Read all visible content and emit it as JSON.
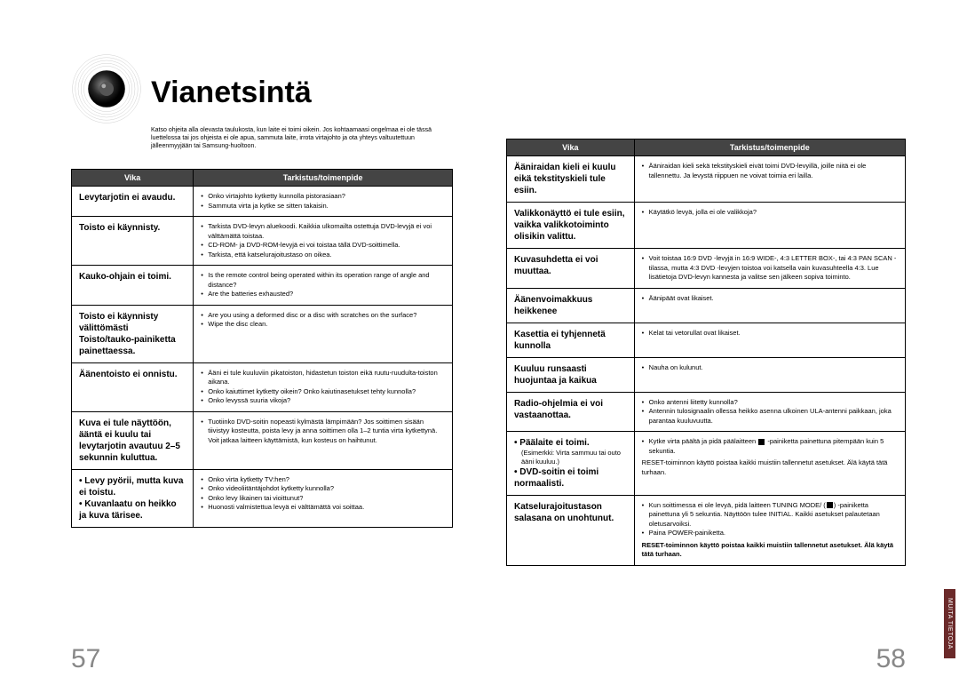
{
  "title": "Vianetsintä",
  "intro": "Katso ohjeita alla olevasta taulukosta, kun laite ei toimi oikein. Jos kohtaamaasi ongelmaa ei ole tässä luettelossa tai jos ohjeista ei ole apua, sammuta laite, irrota virtajohto ja ota yhteys valtuutettuun jälleenmyyjään tai Samsung-huoltoon.",
  "header_vika": "Vika",
  "header_action": "Tarkistus/toimenpide",
  "page_left_num": "57",
  "page_right_num": "58",
  "side_tab": "MUITA TIETOJA",
  "left_rows": [
    {
      "symptom": "Levytarjotin ei avaudu.",
      "actions": [
        "Onko virtajohto kytketty kunnolla pistorasiaan?",
        "Sammuta virta ja kytke se sitten takaisin."
      ]
    },
    {
      "symptom": "Toisto ei käynnisty.",
      "actions": [
        "Tarkista DVD-levyn aluekoodi. Kaikkia ulkomailta ostettuja DVD-levyjä ei voi välttämättä toistaa.",
        "CD-ROM- ja DVD-ROM-levyjä ei voi toistaa tällä DVD-soittimella.",
        "Tarkista, että katselurajoitustaso on oikea."
      ]
    },
    {
      "symptom": "Kauko-ohjain ei toimi.",
      "actions": [
        "Is the remote control being operated within its operation range of angle and distance?",
        "Are the batteries exhausted?"
      ]
    },
    {
      "symptom": "Toisto ei käynnisty välittömästi Toisto/tauko-painiketta painettaessa.",
      "actions": [
        "Are you using a deformed disc or a disc with scratches on the surface?",
        "Wipe the disc clean."
      ]
    },
    {
      "symptom": "Äänentoisto ei onnistu.",
      "actions": [
        "Ääni ei tule kuuluviin pikatoiston, hidastetun toiston eikä ruutu-ruudulta-toiston aikana.",
        "Onko kaiuttimet kytketty oikein? Onko kaiutinasetukset tehty kunnolla?",
        "Onko levyssä suuria vikoja?"
      ]
    },
    {
      "symptom": "Kuva ei tule näyttöön, ääntä ei kuulu tai levytarjotin avautuu 2–5 sekunnin kuluttua.",
      "actions": [
        "Tuotiinko DVD-soitin nopeasti kylmästä lämpimään? Jos soittimen sisään tiivistyy kosteutta, poista levy ja anna soittimen olla 1–2 tuntia virta kytkettynä. Voit jatkaa laitteen käyttämistä, kun kosteus on haihtunut."
      ]
    },
    {
      "symptom": "• Levy pyörii, mutta kuva ei toistu.\n• Kuvanlaatu on heikko ja kuva tärisee.",
      "actions": [
        "Onko virta kytketty TV:hen?",
        "Onko videoliitäntäjohdot kytketty kunnolla?",
        "Onko levy likainen tai vioittunut?",
        "Huonosti valmistettua levyä ei välttämättä voi soittaa."
      ]
    }
  ],
  "right_rows": [
    {
      "symptom": "Ääniraidan kieli ei kuulu eikä tekstityskieli tule esiin.",
      "actions": [
        "Ääniraidan kieli sekä tekstityskieli eivät toimi DVD-levyillä, joille niitä ei ole tallennettu. Ja levystä riippuen ne voivat toimia eri lailla."
      ]
    },
    {
      "symptom": "Valikkonäyttö ei tule esiin, vaikka valikkotoiminto olisikin valittu.",
      "actions": [
        "Käytätkö levyä, jolla ei ole valikkoja?"
      ]
    },
    {
      "symptom": "Kuvasuhdetta ei voi muuttaa.",
      "actions": [
        "Voit toistaa 16:9 DVD -levyjä in 16:9 WIDE-, 4:3 LETTER BOX-, tai 4:3 PAN SCAN -tilassa, mutta 4:3 DVD -levyjen toistoa voi katsella vain kuvasuhteella 4:3. Lue lisätietoja DVD-levyn kannesta ja valitse sen jälkeen sopiva toiminto."
      ]
    },
    {
      "symptom": "Äänenvoimakkuus heikkenee",
      "actions": [
        "Äänipäät ovat likaiset."
      ]
    },
    {
      "symptom": "Kasettia ei tyhjennetä kunnolla",
      "actions": [
        "Kelat tai vetorullat ovat likaiset."
      ]
    },
    {
      "symptom": "Kuuluu runsaasti huojuntaa ja kaikua",
      "actions": [
        "Nauha on kulunut."
      ]
    },
    {
      "symptom": "Radio-ohjelmia ei voi vastaanottaa.",
      "actions": [
        "Onko antenni liitetty kunnolla?",
        "Antennin tulosignaalin ollessa heikko asenna ulkoinen ULA-antenni paikkaan, joka parantaa kuuluvuutta."
      ]
    },
    {
      "symptom": "• Päälaite ei toimi.\n(Esimerkki: Virta sammuu tai outo ääni kuuluu.)\n• DVD-soitin ei toimi normaalisti.",
      "actions": [
        "Kytke virta päältä ja pidä päälaitteen ■ -painiketta painettuna pitempään kuin 5 sekuntia.",
        "__PLAIN__RESET-toiminnon käyttö poistaa kaikki muistiin tallennetut asetukset. Älä käytä tätä turhaan."
      ]
    },
    {
      "symptom": "Katselurajoitustason salasana on unohtunut.",
      "actions": [
        "Kun soittimessa ei ole levyä, pidä laitteen TUNING MODE/ (■) -painiketta painettuna yli 5 sekuntia. Näyttöön tulee INITIAL. Kaikki asetukset palautetaan oletusarvoiksi.",
        "Paina POWER-painiketta.",
        "__BOLD__RESET-toiminnon käyttö poistaa kaikki muistiin tallennetut asetukset. Älä käytä tätä turhaan."
      ]
    }
  ]
}
